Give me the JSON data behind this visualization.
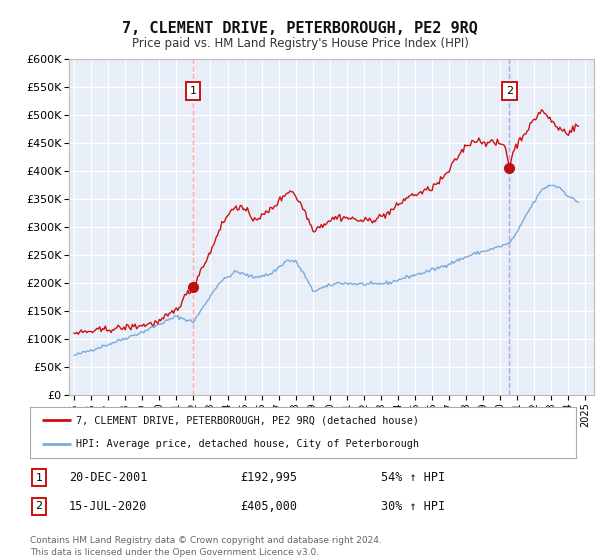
{
  "title": "7, CLEMENT DRIVE, PETERBOROUGH, PE2 9RQ",
  "subtitle": "Price paid vs. HM Land Registry's House Price Index (HPI)",
  "background_color": "#ffffff",
  "plot_bg_color": "#e8eef8",
  "grid_color": "#ffffff",
  "ylim": [
    0,
    600000
  ],
  "ytick_values": [
    0,
    50000,
    100000,
    150000,
    200000,
    250000,
    300000,
    350000,
    400000,
    450000,
    500000,
    550000,
    600000
  ],
  "ytick_labels": [
    "£0",
    "£50K",
    "£100K",
    "£150K",
    "£200K",
    "£250K",
    "£300K",
    "£350K",
    "£400K",
    "£450K",
    "£500K",
    "£550K",
    "£600K"
  ],
  "xlim_start": 1994.7,
  "xlim_end": 2025.5,
  "xticks": [
    1995,
    1996,
    1997,
    1998,
    1999,
    2000,
    2001,
    2002,
    2003,
    2004,
    2005,
    2006,
    2007,
    2008,
    2009,
    2010,
    2011,
    2012,
    2013,
    2014,
    2015,
    2016,
    2017,
    2018,
    2019,
    2020,
    2021,
    2022,
    2023,
    2024,
    2025
  ],
  "sale1_x": 2001.97,
  "sale1_y": 192995,
  "sale2_x": 2020.54,
  "sale2_y": 405000,
  "sale1_date": "20-DEC-2001",
  "sale1_price": "£192,995",
  "sale1_hpi": "54% ↑ HPI",
  "sale2_date": "15-JUL-2020",
  "sale2_price": "£405,000",
  "sale2_hpi": "30% ↑ HPI",
  "line1_color": "#cc1111",
  "line2_color": "#7aaadd",
  "vline1_color": "#ffaaaa",
  "vline2_color": "#aaaadd",
  "marker_color": "#bb1111",
  "legend_label1": "7, CLEMENT DRIVE, PETERBOROUGH, PE2 9RQ (detached house)",
  "legend_label2": "HPI: Average price, detached house, City of Peterborough",
  "footnote1": "Contains HM Land Registry data © Crown copyright and database right 2024.",
  "footnote2": "This data is licensed under the Open Government Licence v3.0."
}
